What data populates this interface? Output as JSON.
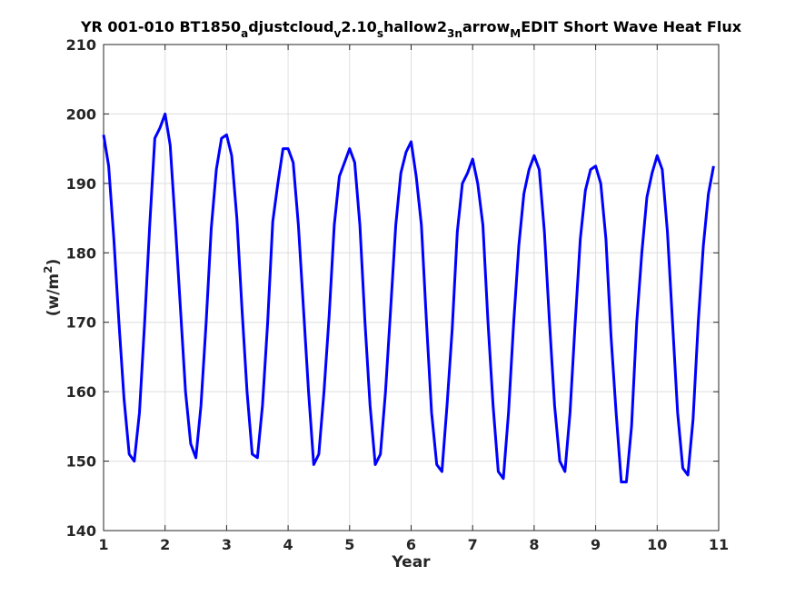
{
  "chart_data": {
    "type": "line",
    "title": {
      "parts": [
        {
          "text": "YR 001-010 BT1850",
          "sub": false
        },
        {
          "text": "a",
          "sub": true
        },
        {
          "text": "djustcloud",
          "sub": false
        },
        {
          "text": "v",
          "sub": true
        },
        {
          "text": "2.10",
          "sub": false
        },
        {
          "text": "s",
          "sub": true
        },
        {
          "text": "hallow2",
          "sub": false
        },
        {
          "text": "3n",
          "sub": true
        },
        {
          "text": "arrow",
          "sub": false
        },
        {
          "text": "M",
          "sub": true
        },
        {
          "text": "EDIT Short Wave Heat Flux",
          "sub": false
        }
      ]
    },
    "xlabel": "Year",
    "ylabel": {
      "base": "(w/m",
      "sup": "2",
      "close": ")"
    },
    "xlim": [
      1,
      11
    ],
    "ylim": [
      140,
      210
    ],
    "xticks": [
      1,
      2,
      3,
      4,
      5,
      6,
      7,
      8,
      9,
      10,
      11
    ],
    "yticks": [
      140,
      150,
      160,
      170,
      180,
      190,
      200,
      210
    ],
    "grid": true,
    "series": [
      {
        "color": "#0000ff",
        "x": [
          1.0,
          1.083,
          1.167,
          1.25,
          1.333,
          1.417,
          1.5,
          1.583,
          1.667,
          1.75,
          1.833,
          1.917,
          2.0,
          2.083,
          2.167,
          2.25,
          2.333,
          2.417,
          2.5,
          2.583,
          2.667,
          2.75,
          2.833,
          2.917,
          3.0,
          3.083,
          3.167,
          3.25,
          3.333,
          3.417,
          3.5,
          3.583,
          3.667,
          3.75,
          3.833,
          3.917,
          4.0,
          4.083,
          4.167,
          4.25,
          4.333,
          4.417,
          4.5,
          4.583,
          4.667,
          4.75,
          4.833,
          4.917,
          5.0,
          5.083,
          5.167,
          5.25,
          5.333,
          5.417,
          5.5,
          5.583,
          5.667,
          5.75,
          5.833,
          5.917,
          6.0,
          6.083,
          6.167,
          6.25,
          6.333,
          6.417,
          6.5,
          6.583,
          6.667,
          6.75,
          6.833,
          6.917,
          7.0,
          7.083,
          7.167,
          7.25,
          7.333,
          7.417,
          7.5,
          7.583,
          7.667,
          7.75,
          7.833,
          7.917,
          8.0,
          8.083,
          8.167,
          8.25,
          8.333,
          8.417,
          8.5,
          8.583,
          8.667,
          8.75,
          8.833,
          8.917,
          9.0,
          9.083,
          9.167,
          9.25,
          9.333,
          9.417,
          9.5,
          9.583,
          9.667,
          9.75,
          9.833,
          9.917,
          10.0,
          10.083,
          10.167,
          10.25,
          10.333,
          10.417,
          10.5,
          10.583,
          10.667,
          10.75,
          10.833,
          10.917
        ],
        "y": [
          197.0,
          192.5,
          182.0,
          170.0,
          159.0,
          151.0,
          150.0,
          157.0,
          170.0,
          184.0,
          196.5,
          198.0,
          200.0,
          195.5,
          184.0,
          172.0,
          160.0,
          152.5,
          150.5,
          158.0,
          170.0,
          183.5,
          192.0,
          196.5,
          197.0,
          194.0,
          185.0,
          172.0,
          160.0,
          151.0,
          150.5,
          158.0,
          170.0,
          184.5,
          190.0,
          195.0,
          195.0,
          193.0,
          184.0,
          172.0,
          160.0,
          149.5,
          151.0,
          160.0,
          171.0,
          184.0,
          191.0,
          193.0,
          195.0,
          193.0,
          184.0,
          170.0,
          158.0,
          149.5,
          151.0,
          160.0,
          172.0,
          184.0,
          191.5,
          194.5,
          196.0,
          191.0,
          184.0,
          170.0,
          157.0,
          149.5,
          148.5,
          158.0,
          169.0,
          183.0,
          190.0,
          191.5,
          193.5,
          190.0,
          184.0,
          170.0,
          158.0,
          148.5,
          147.5,
          157.0,
          170.0,
          181.0,
          188.5,
          192.0,
          194.0,
          192.0,
          183.0,
          170.0,
          158.0,
          150.0,
          148.5,
          157.0,
          170.0,
          182.0,
          189.0,
          192.0,
          192.5,
          190.0,
          182.0,
          168.0,
          157.0,
          147.0,
          147.0,
          155.0,
          170.0,
          180.0,
          188.0,
          191.5,
          194.0,
          192.0,
          183.0,
          170.0,
          157.0,
          149.0,
          148.0,
          156.0,
          170.0,
          181.0,
          188.5,
          192.5
        ]
      }
    ]
  }
}
